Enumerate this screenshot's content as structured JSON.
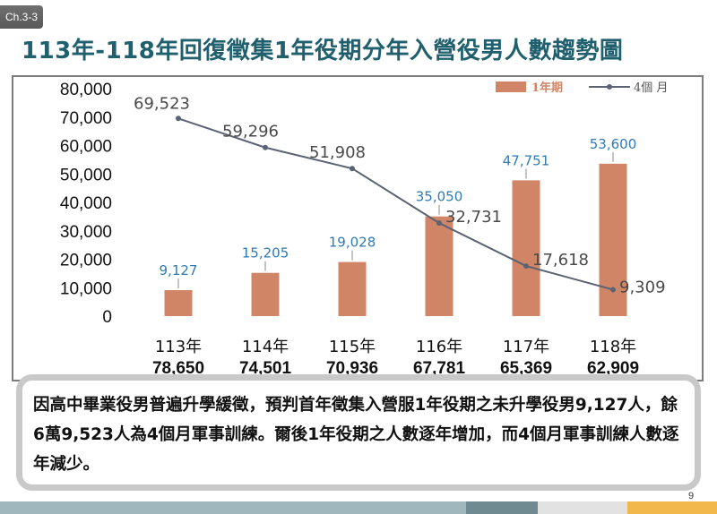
{
  "chapter_tab": "Ch.3-3",
  "title": "113年-118年回復徵集1年役期分年入營役男人數趨勢圖",
  "page_number": "9",
  "note": "因高中畢業役男普遍升學緩徵，預判首年徵集入營服1年役期之未升學役男9,127人，餘6萬9,523人為4個月軍事訓練。爾後1年役期之人數逐年增加，而4個月軍事訓練人數逐年減少。",
  "colors": {
    "bar": "#d08566",
    "line": "#5b6373",
    "bar_label": "#2e7ab5",
    "line_label": "#4a4a4a",
    "title": "#1f5f6e"
  },
  "chart_data": {
    "type": "bar",
    "categories": [
      "113年",
      "114年",
      "115年",
      "116年",
      "117年",
      "118年"
    ],
    "category_totals": [
      "78,650",
      "74,501",
      "70,936",
      "67,781",
      "65,369",
      "62,909"
    ],
    "series": [
      {
        "name": "1年期",
        "type": "bar",
        "values": [
          9127,
          15205,
          19028,
          35050,
          47751,
          53600
        ],
        "labels": [
          "9,127",
          "15,205",
          "19,028",
          "35,050",
          "47,751",
          "53,600"
        ]
      },
      {
        "name": "4個 月",
        "type": "line",
        "values": [
          69523,
          59296,
          51908,
          32731,
          17618,
          9309
        ],
        "labels": [
          "69,523",
          "59,296",
          "51,908",
          "32,731",
          "17,618",
          "9,309"
        ]
      }
    ],
    "y_ticks": [
      "80,000",
      "70,000",
      "60,000",
      "50,000",
      "40,000",
      "30,000",
      "20,000",
      "10,000",
      "0"
    ],
    "ylim": [
      0,
      80000
    ],
    "grid": false,
    "legend_position": "top-right"
  },
  "bottom_bar_colors": [
    "#9fb7bd",
    "#6f8a90",
    "#e2e2e2",
    "#f2b84b"
  ]
}
